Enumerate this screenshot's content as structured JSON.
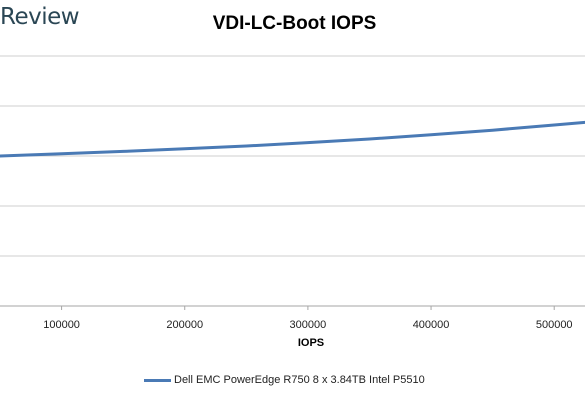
{
  "brand": {
    "text": "Review"
  },
  "chart_data": {
    "type": "line",
    "title": "VDI-LC-Boot IOPS",
    "xlabel": "IOPS",
    "ylabel": "",
    "x_ticks": [
      100000,
      200000,
      300000,
      400000,
      500000
    ],
    "x_tick_labels": [
      "100000",
      "200000",
      "300000",
      "400000",
      "500000"
    ],
    "xlim": [
      50000,
      525000
    ],
    "grid": true,
    "legend_position": "bottom",
    "series": [
      {
        "name": "Dell EMC PowerEdge R750 8 x 3.84TB Intel P5510",
        "color": "#4a7ab5",
        "x": [
          50000,
          100000,
          150000,
          200000,
          250000,
          300000,
          350000,
          400000,
          450000,
          500000,
          525000
        ],
        "y": [
          0.0,
          0.055,
          0.115,
          0.18,
          0.25,
          0.335,
          0.425,
          0.53,
          0.645,
          0.775,
          0.84
        ]
      }
    ]
  }
}
